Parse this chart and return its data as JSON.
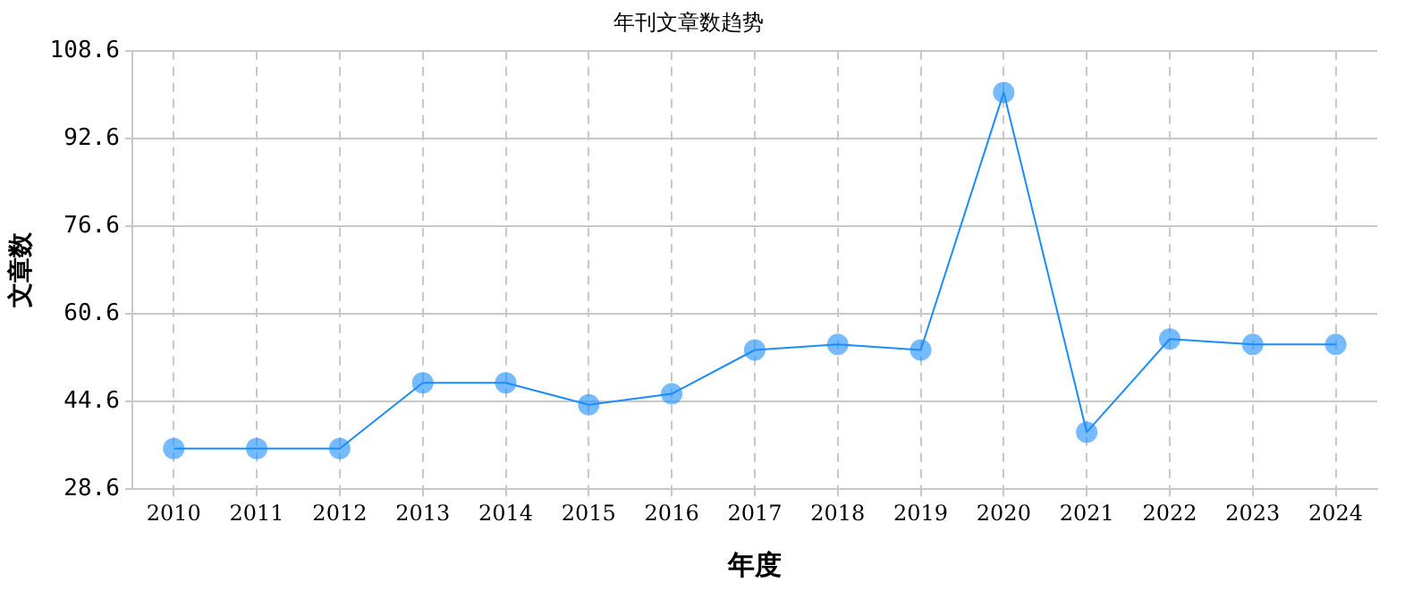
{
  "chart_data": {
    "type": "line",
    "title": "年刊文章数趋势",
    "xlabel": "年度",
    "ylabel": "文章数",
    "categories": [
      "2010",
      "2011",
      "2012",
      "2013",
      "2014",
      "2015",
      "2016",
      "2017",
      "2018",
      "2019",
      "2020",
      "2021",
      "2022",
      "2023",
      "2024"
    ],
    "series": [
      {
        "color": "#1a8cff",
        "values": [
          36,
          36,
          36,
          48,
          48,
          44,
          46,
          54,
          55,
          54,
          101,
          39,
          56,
          55,
          55
        ]
      }
    ],
    "ylim": [
      28.6,
      108.6
    ],
    "yticks": [
      28.6,
      44.6,
      60.6,
      76.6,
      92.6,
      108.6
    ],
    "grid": true,
    "marker": "circle",
    "line_style": "solid"
  }
}
